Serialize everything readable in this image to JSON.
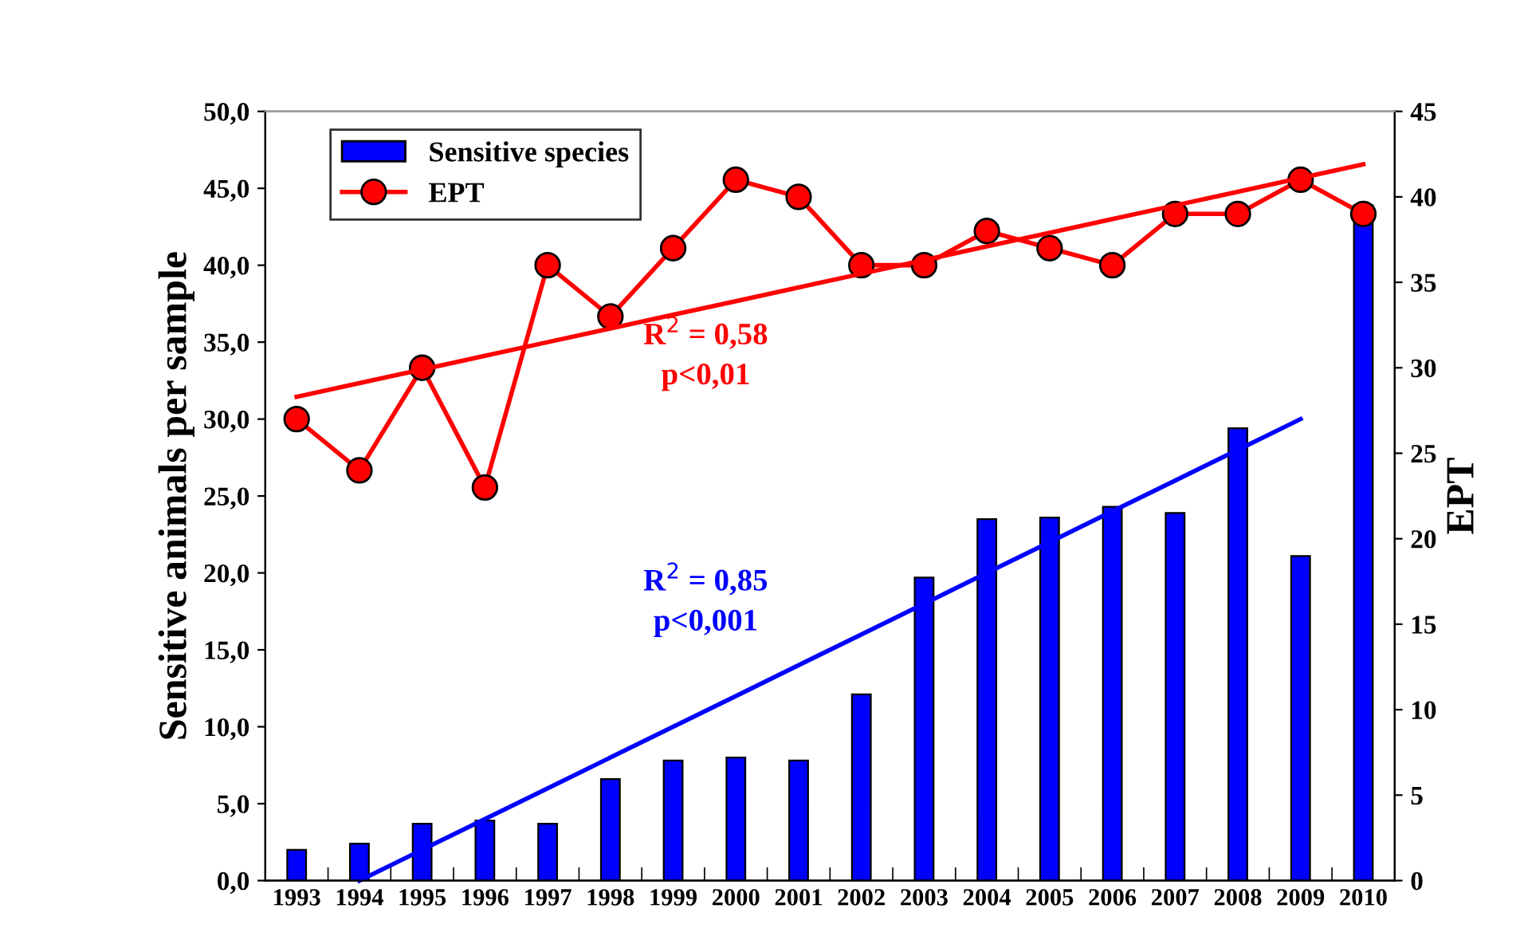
{
  "chart_data": {
    "type": "bar",
    "ylabel": "Sensitive animals per sample",
    "y2label": "EPT",
    "categories": [
      "1993",
      "1994",
      "1995",
      "1996",
      "1997",
      "1998",
      "1999",
      "2000",
      "2001",
      "2002",
      "2003",
      "2004",
      "2005",
      "2006",
      "2007",
      "2008",
      "2009",
      "2010"
    ],
    "series": [
      {
        "name": "Sensitive species",
        "color": "#0000ff",
        "values": [
          2.0,
          2.4,
          3.7,
          3.9,
          3.7,
          6.6,
          7.8,
          8.0,
          7.8,
          12.1,
          19.7,
          23.5,
          23.6,
          24.3,
          23.9,
          29.4,
          21.1,
          43.9
        ]
      },
      {
        "name": "EPT",
        "type": "line",
        "axis": "y2",
        "color": "#ff0000",
        "marker": "circle",
        "values": [
          27,
          24,
          30,
          23,
          36,
          33,
          37,
          41,
          40,
          36,
          36,
          38,
          37,
          36,
          39,
          39,
          41,
          39
        ]
      },
      {
        "type": "line",
        "axis": "y2",
        "color": "#ff0000",
        "marker": "none",
        "values": [
          28.3,
          29.1,
          29.9,
          30.7,
          31.5,
          32.3,
          33.1,
          33.9,
          34.7,
          35.5,
          36.3,
          37.1,
          37.9,
          38.7,
          39.5,
          40.3,
          41.1,
          41.9
        ]
      },
      {
        "type": "line",
        "color": "#0000ff",
        "marker": "none",
        "values": [
          null,
          0,
          2,
          4,
          6,
          8,
          10,
          12,
          14,
          16,
          18,
          20,
          22,
          24,
          26,
          28,
          30,
          null
        ]
      }
    ],
    "ylim": [
      0,
      50
    ],
    "yticks": [
      {
        "value": 0,
        "label": "0,0"
      },
      {
        "value": 5,
        "label": "5,0"
      },
      {
        "value": 10,
        "label": "10,0"
      },
      {
        "value": 15,
        "label": "15,0"
      },
      {
        "value": 20,
        "label": "20,0"
      },
      {
        "value": 25,
        "label": "25,0"
      },
      {
        "value": 30,
        "label": "30,0"
      },
      {
        "value": 35,
        "label": "35,0"
      },
      {
        "value": 40,
        "label": "40,0"
      },
      {
        "value": 45,
        "label": "45,0"
      },
      {
        "value": 50,
        "label": "50,0"
      }
    ],
    "y2lim": [
      0,
      45
    ],
    "y2ticks": [
      0,
      5,
      10,
      15,
      20,
      25,
      30,
      35,
      40,
      45
    ],
    "annotations": [
      "R$^{2}$ = 0,58",
      "p<0,01",
      "R$^{2}$ = 0,85",
      "p<0,001"
    ],
    "legend": "top left",
    "grid": false
  }
}
